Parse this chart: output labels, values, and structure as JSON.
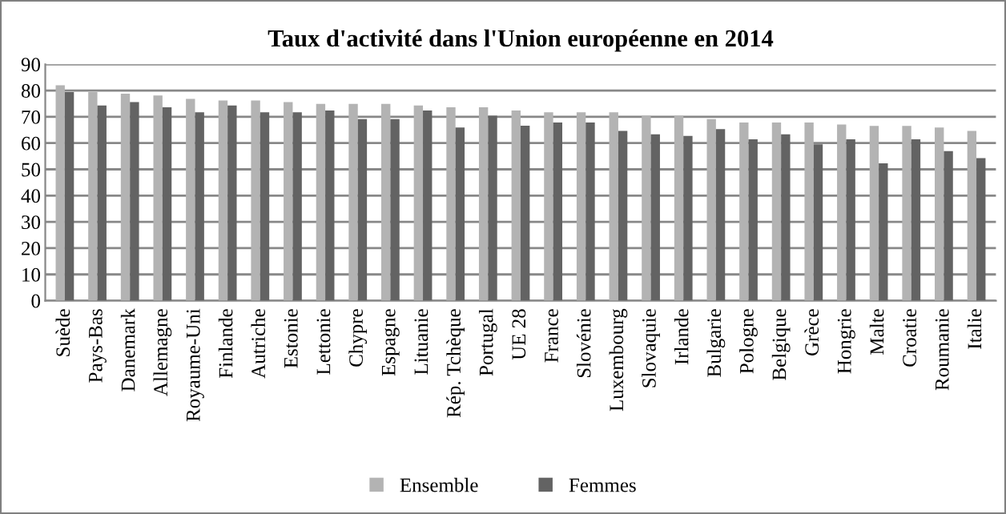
{
  "chart_data": {
    "type": "bar",
    "title": "Taux d'activité dans l'Union européenne en 2014",
    "categories": [
      "Suède",
      "Pays-Bas",
      "Danemark",
      "Allemagne",
      "Royaume-Uni",
      "Finlande",
      "Autriche",
      "Estonie",
      "Lettonie",
      "Chypre",
      "Espagne",
      "Lituanie",
      "Rép. Tchèque",
      "Portugal",
      "UE 28",
      "France",
      "Slovénie",
      "Luxembourg",
      "Slovaquie",
      "Irlande",
      "Bulgarie",
      "Pologne",
      "Belgique",
      "Grèce",
      "Hongrie",
      "Malte",
      "Croatie",
      "Roumanie",
      "Italie"
    ],
    "series": [
      {
        "name": "Ensemble",
        "color": "#b3b3b3",
        "values": [
          82,
          79.4,
          78.8,
          78.1,
          76.8,
          76.2,
          76.2,
          75.6,
          74.9,
          74.9,
          74.9,
          74.3,
          73.6,
          73.6,
          72.4,
          71.7,
          71.7,
          71.7,
          70.4,
          70.4,
          69.1,
          67.8,
          67.8,
          67.8,
          67.1,
          66.5,
          66.5,
          65.9,
          64.6
        ]
      },
      {
        "name": "Femmes",
        "color": "#636363",
        "values": [
          79.4,
          74.3,
          75.6,
          73.6,
          71.7,
          74.3,
          71.7,
          71.7,
          72.4,
          69.1,
          69.1,
          72.4,
          65.9,
          70.4,
          66.6,
          67.8,
          67.8,
          64.6,
          63.3,
          62.7,
          65.3,
          61.4,
          63.3,
          59.5,
          61.4,
          52.3,
          61.4,
          56.9,
          54.3
        ]
      }
    ],
    "ylim": [
      0,
      90
    ],
    "yticks": [
      0,
      10,
      20,
      30,
      40,
      50,
      60,
      70,
      80,
      90
    ],
    "grid": "y",
    "legend": "bottom"
  }
}
